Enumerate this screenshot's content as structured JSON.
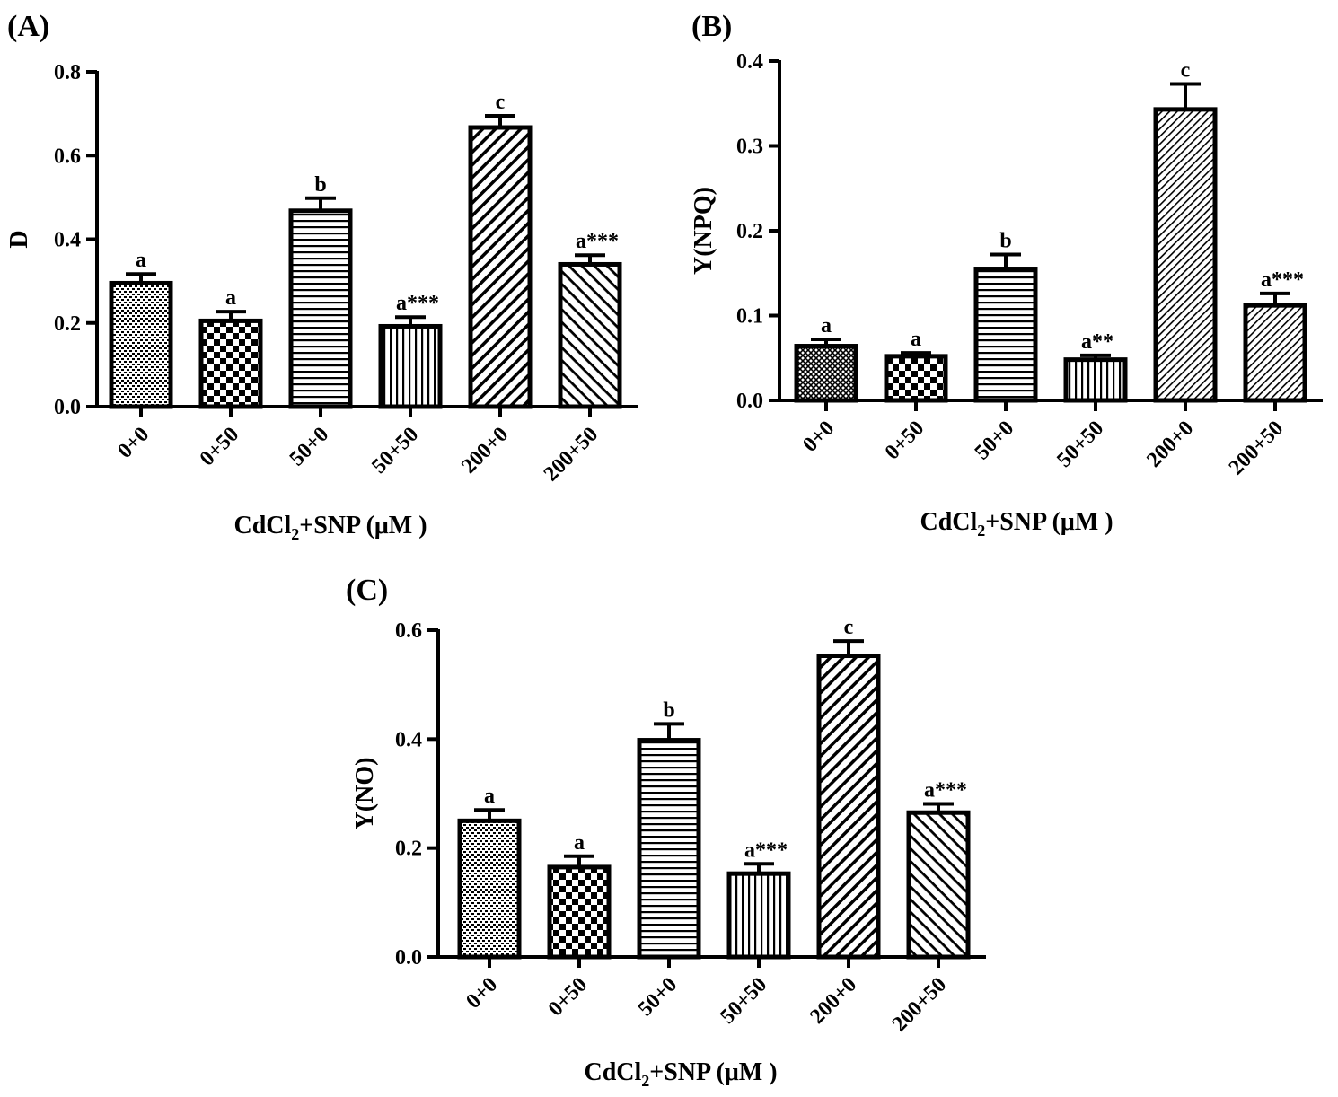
{
  "chart_data": [
    {
      "type": "bar",
      "panel_label": "(A)",
      "categories": [
        "0+0",
        "0+50",
        "50+0",
        "50+50",
        "200+0",
        "200+50"
      ],
      "values": [
        0.295,
        0.205,
        0.468,
        0.192,
        0.667,
        0.34
      ],
      "errors": [
        0.022,
        0.022,
        0.03,
        0.022,
        0.028,
        0.022
      ],
      "significance": [
        "a",
        "a",
        "b",
        "a***",
        "c",
        "a***"
      ],
      "ylabel": "D",
      "xlabel_main": "CdCl",
      "xlabel_sub": "2",
      "xlabel_rest": "+SNP (μM )",
      "ylim": [
        0,
        0.8
      ],
      "yticks": [
        "0.0",
        "0.2",
        "0.4",
        "0.6",
        "0.8"
      ],
      "patterns": [
        "dots",
        "checker",
        "hlines",
        "vlines",
        "diag-wide",
        "diag-back"
      ]
    },
    {
      "type": "bar",
      "panel_label": "(B)",
      "categories": [
        "0+0",
        "0+50",
        "50+0",
        "50+50",
        "200+0",
        "200+50"
      ],
      "values": [
        0.064,
        0.052,
        0.155,
        0.048,
        0.343,
        0.112
      ],
      "errors": [
        0.008,
        0.004,
        0.017,
        0.005,
        0.03,
        0.014
      ],
      "significance": [
        "a",
        "a",
        "b",
        "a**",
        "c",
        "a***"
      ],
      "ylabel": "Y(NPQ)",
      "xlabel_main": "CdCl",
      "xlabel_sub": "2",
      "xlabel_rest": "+SNP (μM )",
      "ylim": [
        0,
        0.4
      ],
      "yticks": [
        "0.0",
        "0.1",
        "0.2",
        "0.3",
        "0.4"
      ],
      "patterns": [
        "crosshatch",
        "checker",
        "hlines",
        "vlines",
        "diag-fine",
        "diag-fine"
      ]
    },
    {
      "type": "bar",
      "panel_label": "(C)",
      "categories": [
        "0+0",
        "0+50",
        "50+0",
        "50+50",
        "200+0",
        "200+50"
      ],
      "values": [
        0.25,
        0.165,
        0.398,
        0.153,
        0.553,
        0.265
      ],
      "errors": [
        0.02,
        0.02,
        0.03,
        0.018,
        0.027,
        0.016
      ],
      "significance": [
        "a",
        "a",
        "b",
        "a***",
        "c",
        "a***"
      ],
      "ylabel": "Y(NO)",
      "xlabel_main": "CdCl",
      "xlabel_sub": "2",
      "xlabel_rest": "+SNP (μM )",
      "ylim": [
        0,
        0.6
      ],
      "yticks": [
        "0.0",
        "0.2",
        "0.4",
        "0.6"
      ],
      "patterns": [
        "dots",
        "checker",
        "hlines",
        "vlines",
        "diag-wide",
        "diag-back"
      ]
    }
  ]
}
